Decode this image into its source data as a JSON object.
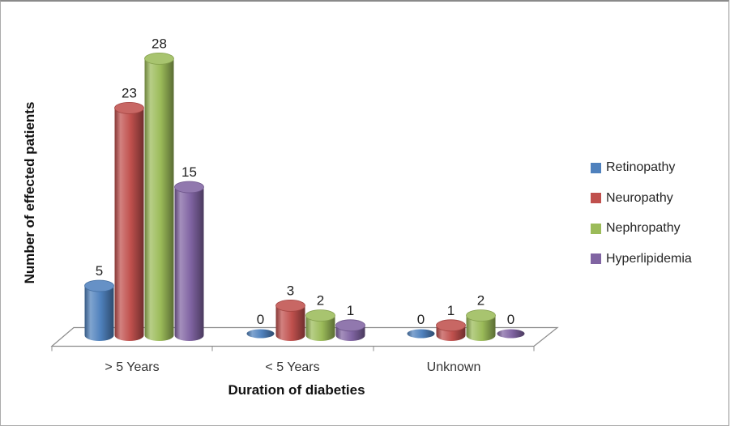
{
  "frame": {
    "background": "#ffffff",
    "border_color": "#ababab",
    "border_top_color": "#8a8a8a"
  },
  "chart_data": {
    "type": "bar",
    "style": "3d-cylinder",
    "title": "",
    "categories": [
      "> 5 Years",
      "< 5 Years",
      "Unknown"
    ],
    "series": [
      {
        "name": "Retinopathy",
        "color": "#4F81BD",
        "values": [
          5,
          0,
          0
        ]
      },
      {
        "name": "Neuropathy",
        "color": "#C0504D",
        "values": [
          23,
          3,
          1
        ]
      },
      {
        "name": "Nephropathy",
        "color": "#9BBB59",
        "values": [
          28,
          2,
          2
        ]
      },
      {
        "name": "Hyperlipidemia",
        "color": "#8064A2",
        "values": [
          15,
          1,
          0
        ]
      }
    ],
    "xlabel": "Duration of diabeties",
    "ylabel": "Number of effected patients",
    "data_labels": true,
    "legend_position": "right",
    "grid": false,
    "ylim": [
      0,
      28
    ],
    "axis_line_color": "#8c8c8c",
    "label_color": "#1f1f1f",
    "category_label_color": "#333333"
  }
}
